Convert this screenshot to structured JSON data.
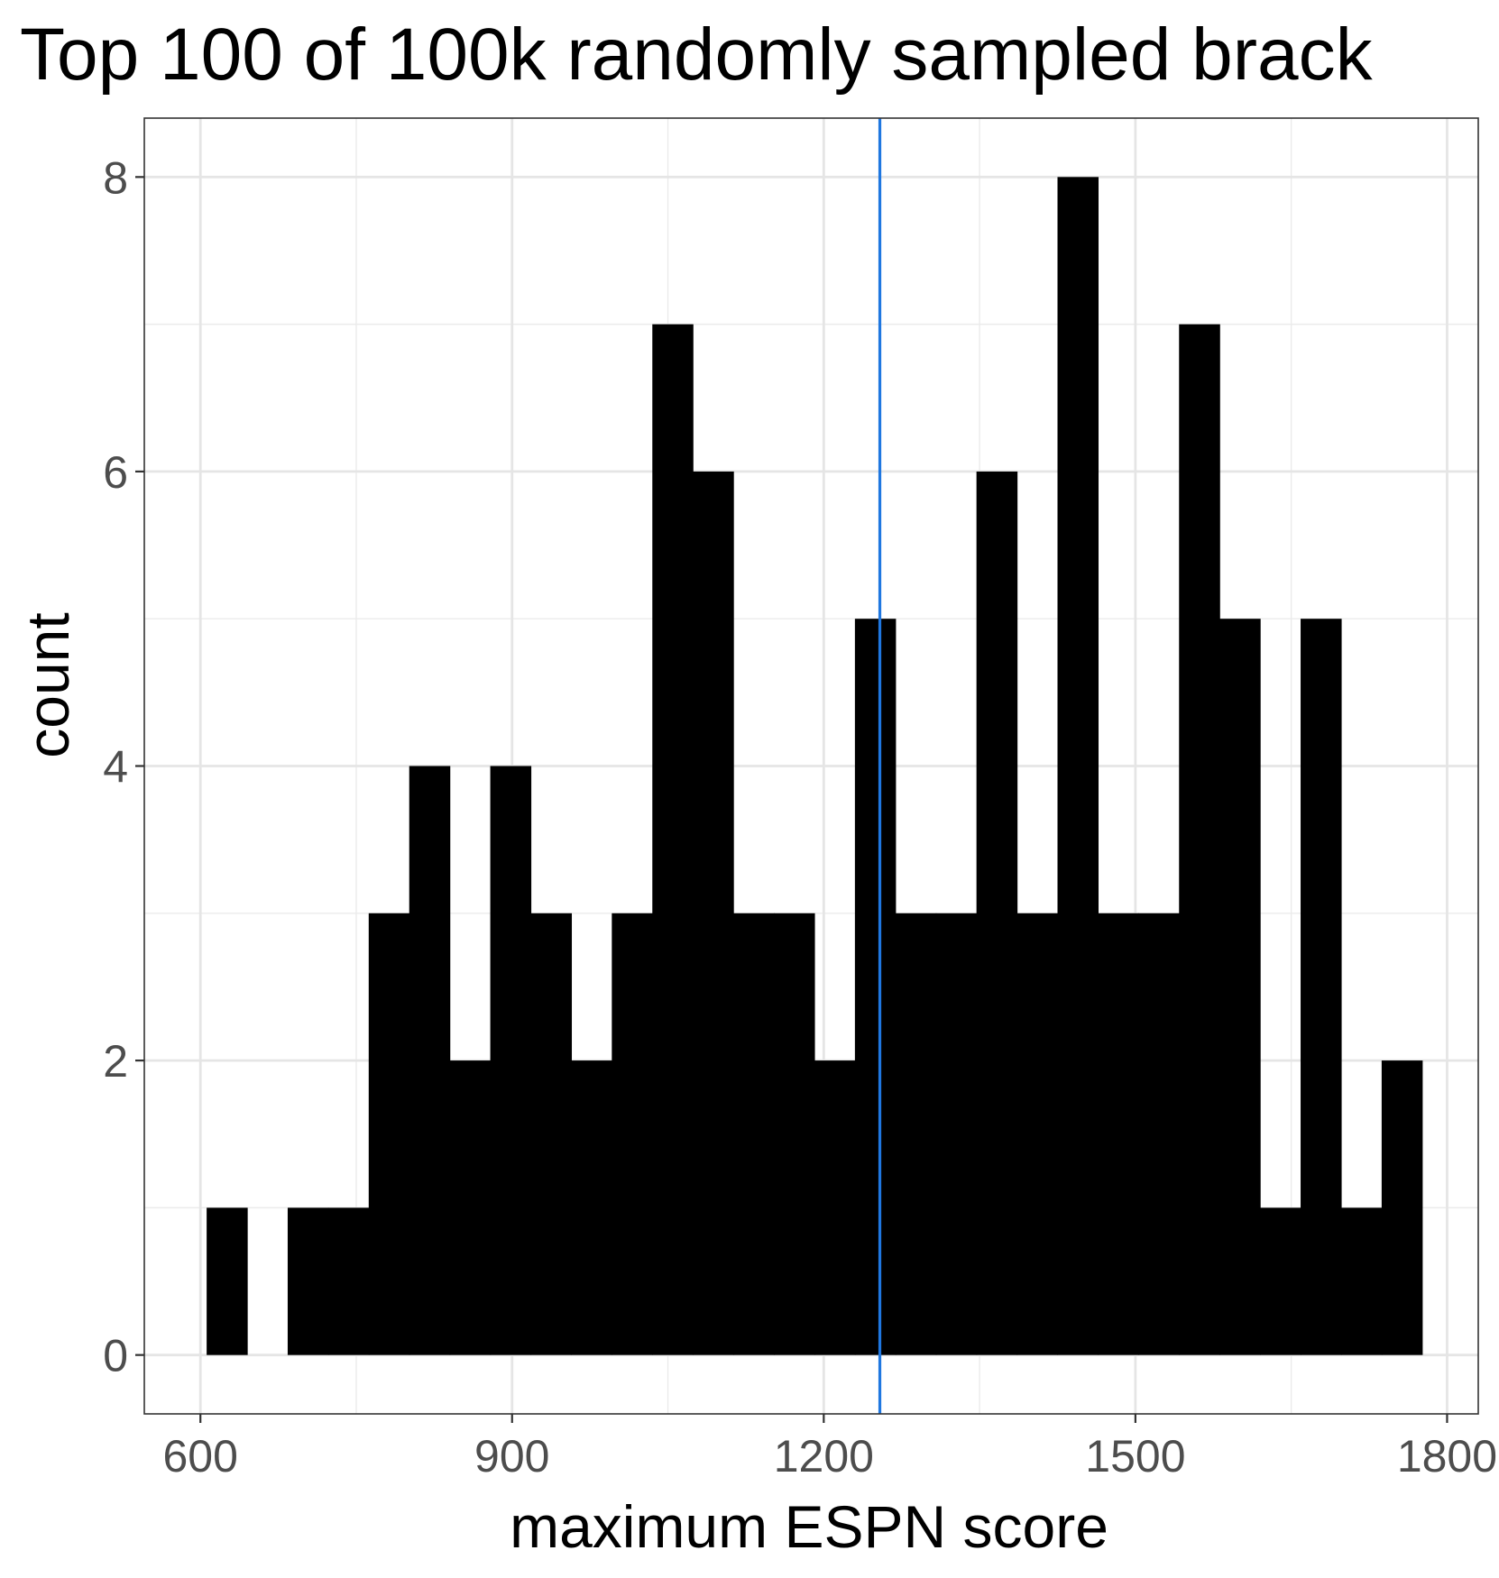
{
  "chart_data": {
    "type": "bar",
    "title": "Top 100 of 100k randomly sampled brack",
    "xlabel": "maximum ESPN score",
    "ylabel": "count",
    "xlim": [
      546,
      1830
    ],
    "ylim": [
      -0.4,
      8.4
    ],
    "x_ticks": [
      600,
      900,
      1200,
      1500,
      1800
    ],
    "y_ticks": [
      0,
      2,
      4,
      6,
      8
    ],
    "grid": true,
    "bin_width": 39,
    "bins": [
      {
        "x0": 606,
        "count": 1
      },
      {
        "x0": 645,
        "count": 0
      },
      {
        "x0": 684,
        "count": 1
      },
      {
        "x0": 723,
        "count": 1
      },
      {
        "x0": 762,
        "count": 3
      },
      {
        "x0": 801,
        "count": 4
      },
      {
        "x0": 840,
        "count": 2
      },
      {
        "x0": 879,
        "count": 4
      },
      {
        "x0": 918,
        "count": 3
      },
      {
        "x0": 957,
        "count": 2
      },
      {
        "x0": 996,
        "count": 3
      },
      {
        "x0": 1035,
        "count": 7
      },
      {
        "x0": 1074,
        "count": 6
      },
      {
        "x0": 1113,
        "count": 3
      },
      {
        "x0": 1152,
        "count": 3
      },
      {
        "x0": 1191,
        "count": 2
      },
      {
        "x0": 1230,
        "count": 5
      },
      {
        "x0": 1269,
        "count": 3
      },
      {
        "x0": 1308,
        "count": 3
      },
      {
        "x0": 1347,
        "count": 6
      },
      {
        "x0": 1386,
        "count": 3
      },
      {
        "x0": 1425,
        "count": 8
      },
      {
        "x0": 1464,
        "count": 3
      },
      {
        "x0": 1503,
        "count": 3
      },
      {
        "x0": 1542,
        "count": 7
      },
      {
        "x0": 1581,
        "count": 5
      },
      {
        "x0": 1620,
        "count": 1
      },
      {
        "x0": 1659,
        "count": 5
      },
      {
        "x0": 1698,
        "count": 1
      },
      {
        "x0": 1737,
        "count": 2
      }
    ],
    "vline": {
      "x": 1254,
      "color": "#1f77e0"
    },
    "bar_color": "#000000"
  }
}
